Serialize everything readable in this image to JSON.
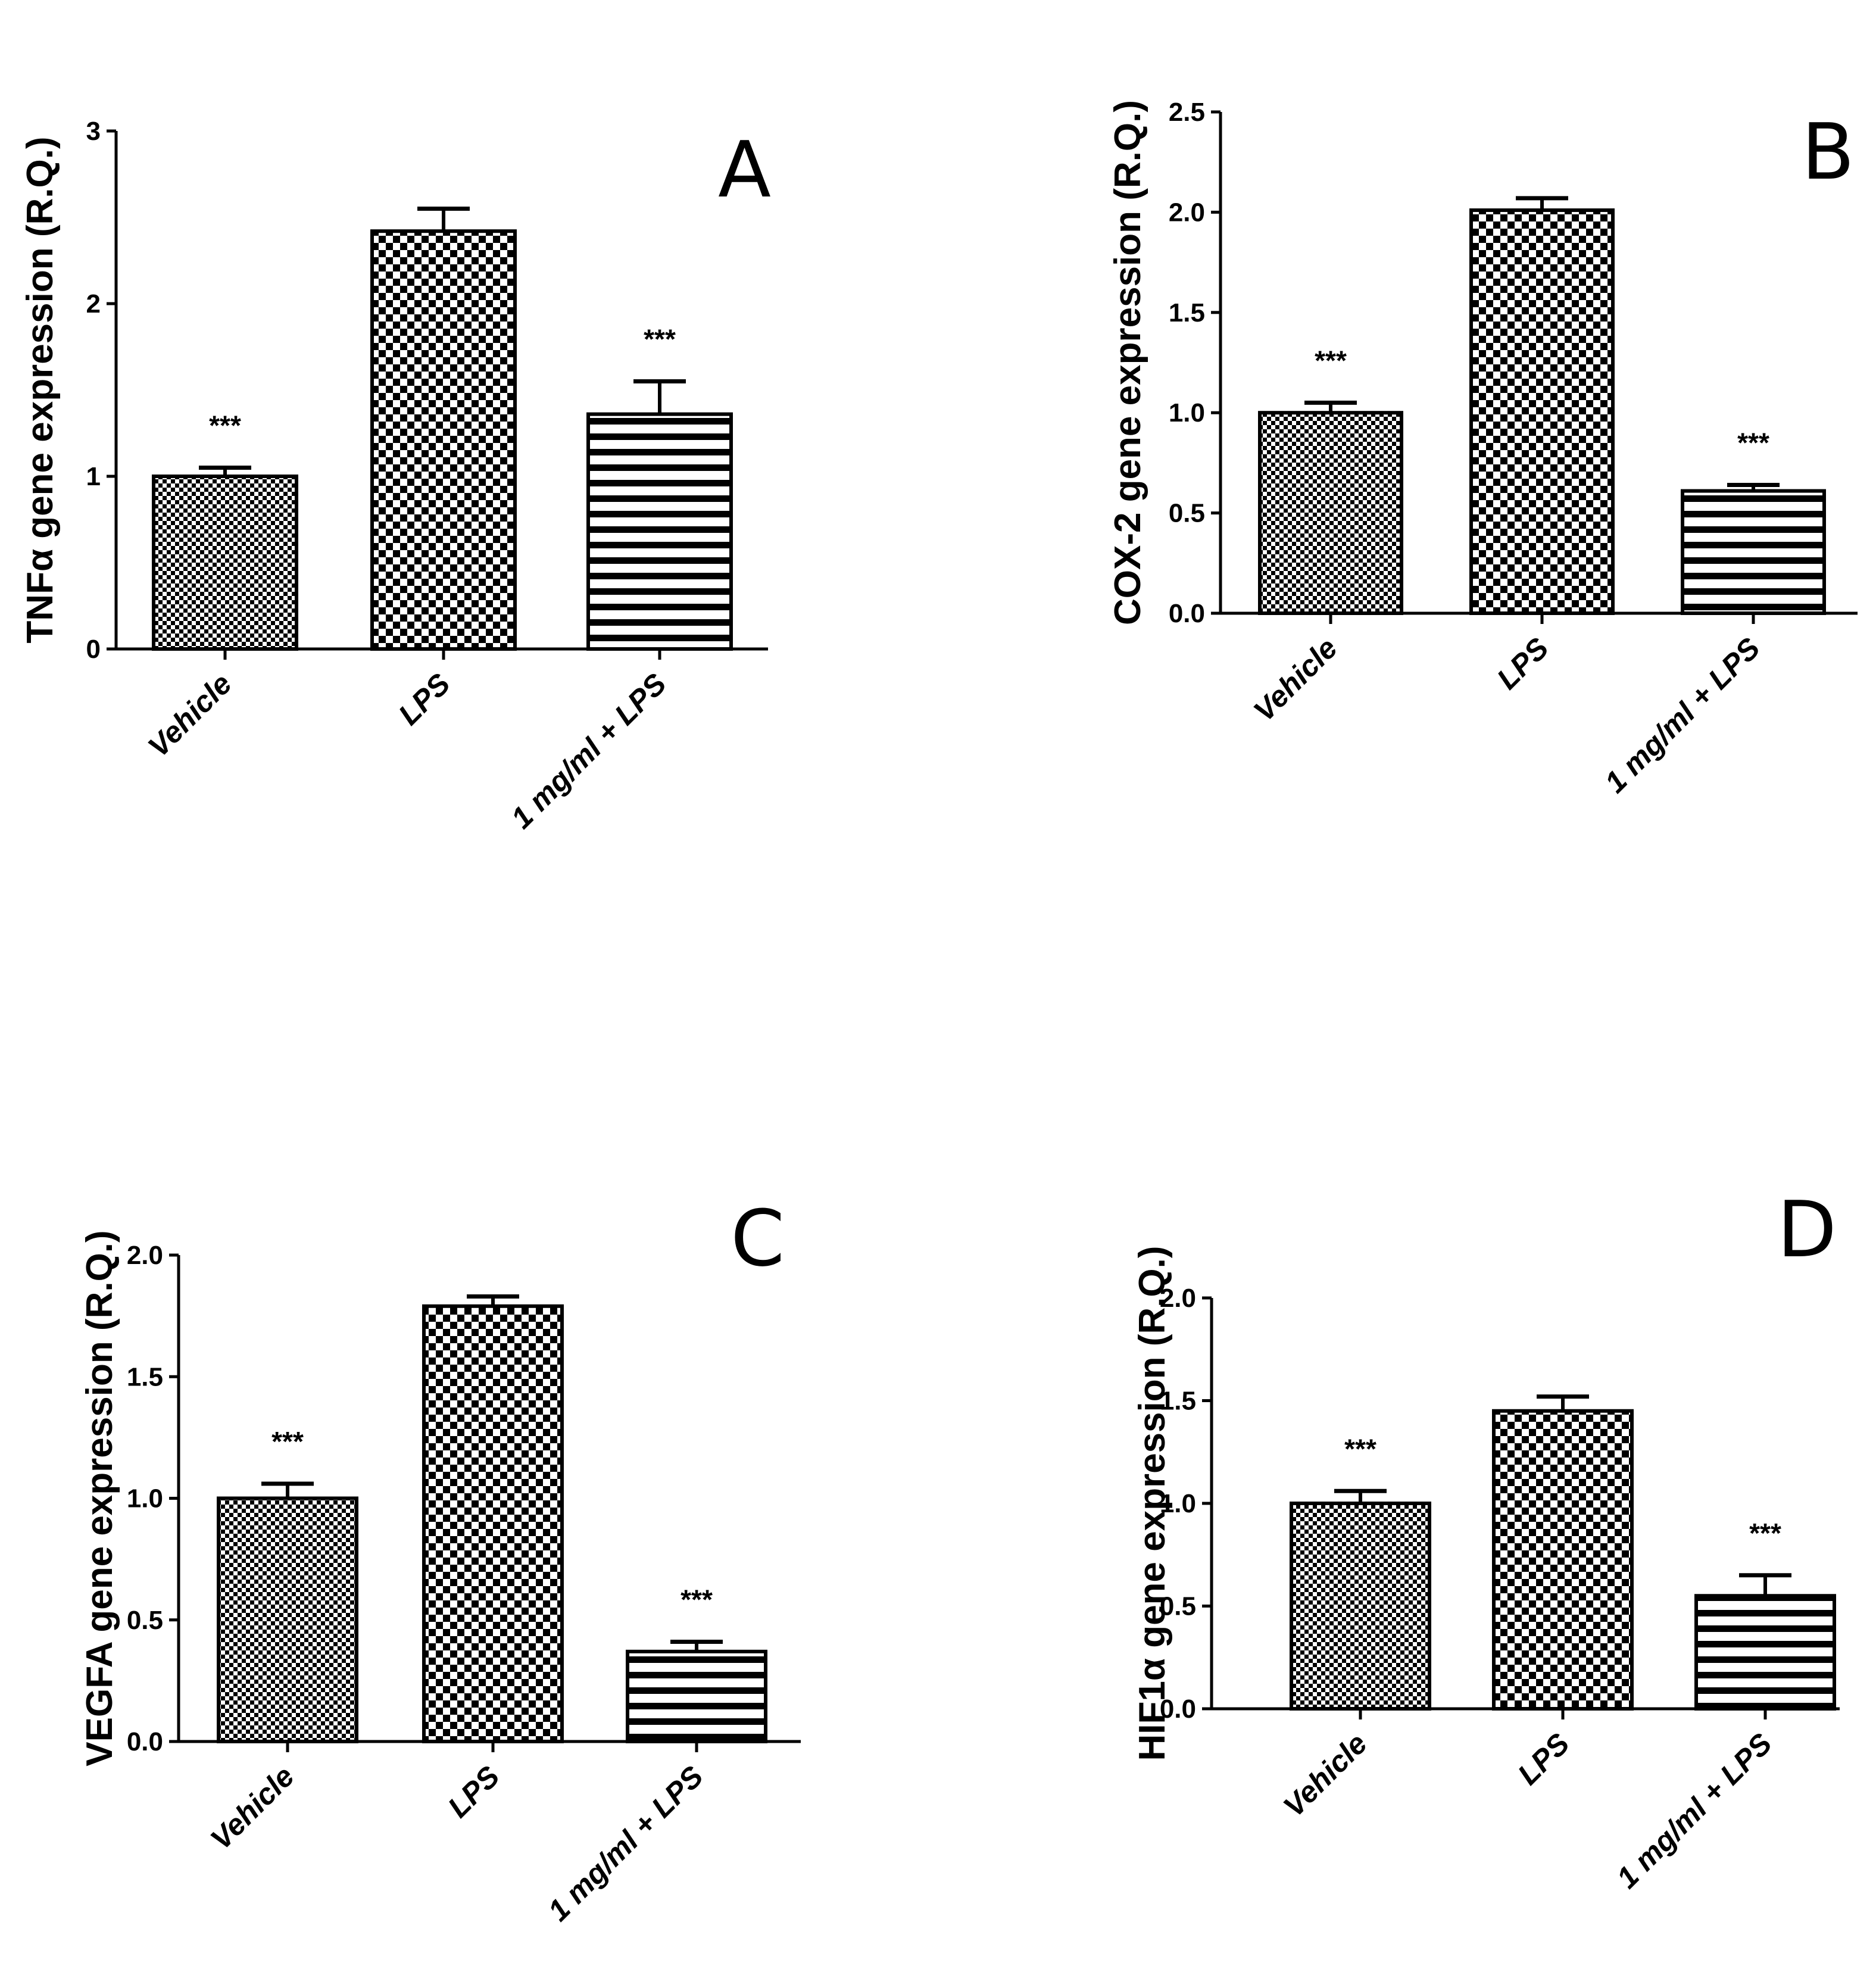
{
  "chart_data": [
    {
      "type": "bar",
      "panel": "A",
      "ylabel": "TNFα gene expression (R.Q.)",
      "categories": [
        "Vehicle",
        "LPS",
        "1 mg/ml + LPS"
      ],
      "values": [
        1.0,
        2.42,
        1.36
      ],
      "errors": [
        0.05,
        0.13,
        0.19
      ],
      "significance": [
        "***",
        "",
        "***"
      ],
      "patterns": [
        "fine-check",
        "checker",
        "stripes"
      ],
      "ylim": [
        0,
        3
      ],
      "yticks": [
        0,
        1,
        2,
        3
      ],
      "ytick_labels": [
        "0",
        "1",
        "2",
        "3"
      ]
    },
    {
      "type": "bar",
      "panel": "B",
      "ylabel": "COX-2 gene expression (R.Q.)",
      "categories": [
        "Vehicle",
        "LPS",
        "1 mg/ml + LPS"
      ],
      "values": [
        1.0,
        2.01,
        0.61
      ],
      "errors": [
        0.05,
        0.06,
        0.03
      ],
      "significance": [
        "***",
        "",
        "***"
      ],
      "patterns": [
        "fine-check",
        "checker",
        "stripes"
      ],
      "ylim": [
        0,
        2.5
      ],
      "yticks": [
        0,
        0.5,
        1.0,
        1.5,
        2.0,
        2.5
      ],
      "ytick_labels": [
        "0.0",
        "0.5",
        "1.0",
        "1.5",
        "2.0",
        "2.5"
      ]
    },
    {
      "type": "bar",
      "panel": "C",
      "ylabel": "VEGFA gene expression (R.Q.)",
      "categories": [
        "Vehicle",
        "LPS",
        "1 mg/ml + LPS"
      ],
      "values": [
        1.0,
        1.79,
        0.37
      ],
      "errors": [
        0.06,
        0.04,
        0.04
      ],
      "significance": [
        "***",
        "",
        "***"
      ],
      "patterns": [
        "fine-check",
        "checker",
        "stripes"
      ],
      "ylim": [
        0,
        2.0
      ],
      "yticks": [
        0,
        0.5,
        1.0,
        1.5,
        2.0
      ],
      "ytick_labels": [
        "0.0",
        "0.5",
        "1.0",
        "1.5",
        "2.0"
      ]
    },
    {
      "type": "bar",
      "panel": "D",
      "ylabel": "HIF1α gene expression (R.Q.)",
      "categories": [
        "Vehicle",
        "LPS",
        "1 mg/ml + LPS"
      ],
      "values": [
        1.0,
        1.45,
        0.55
      ],
      "errors": [
        0.06,
        0.07,
        0.1
      ],
      "significance": [
        "***",
        "",
        "***"
      ],
      "patterns": [
        "fine-check",
        "checker",
        "stripes"
      ],
      "ylim": [
        0,
        2.0
      ],
      "yticks": [
        0,
        0.5,
        1.0,
        1.5,
        2.0
      ],
      "ytick_labels": [
        "0.0",
        "0.5",
        "1.0",
        "1.5",
        "2.0"
      ]
    }
  ],
  "colors": {
    "ink": "#000000",
    "paper": "#ffffff"
  }
}
